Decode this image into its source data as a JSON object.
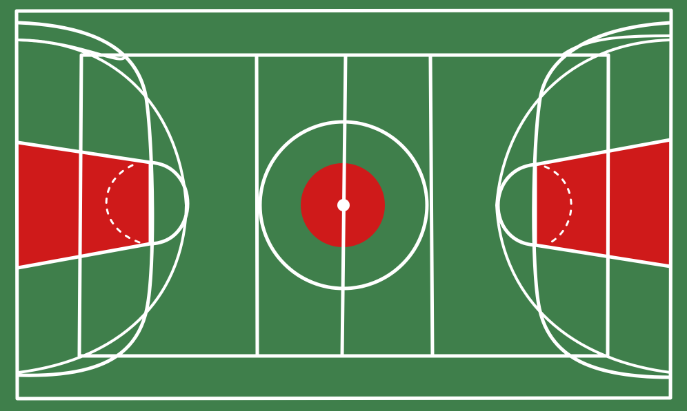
{
  "court": {
    "surface_color": "#3f7f4b",
    "line_color": "#ffffff",
    "key_color": "#cf1a1a",
    "center_circle_fill_color": "#cf1a1a"
  }
}
